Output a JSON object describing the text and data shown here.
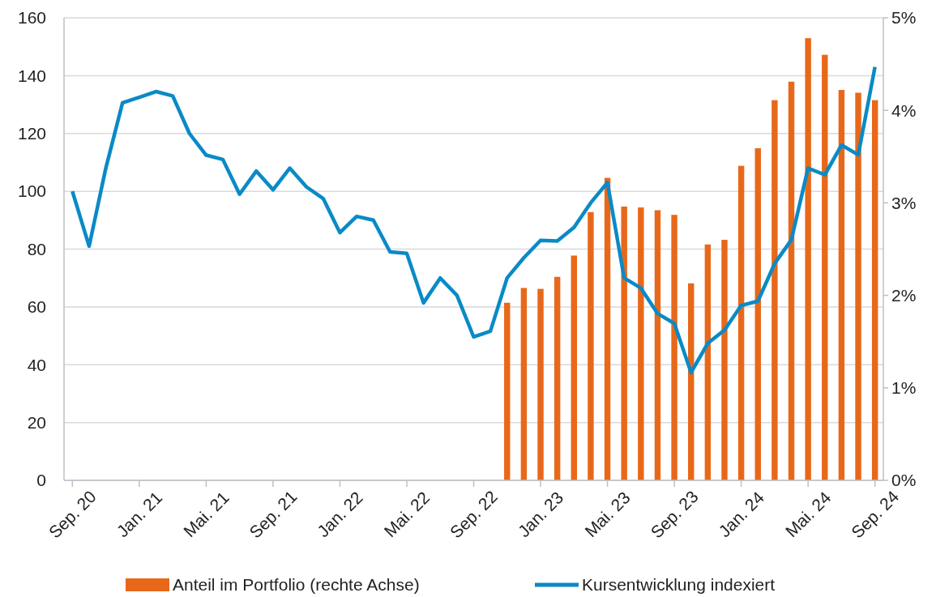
{
  "chart_data": {
    "type": "bar",
    "categories": [
      "Sep. 20",
      null,
      null,
      null,
      "Jan. 21",
      null,
      null,
      null,
      "Mai. 21",
      null,
      null,
      null,
      "Sep. 21",
      null,
      null,
      null,
      "Jan. 22",
      null,
      null,
      null,
      "Mai. 22",
      null,
      null,
      null,
      "Sep. 22",
      null,
      null,
      null,
      "Jan. 23",
      null,
      null,
      null,
      "Mai. 23",
      null,
      null,
      null,
      "Sep. 23",
      null,
      null,
      null,
      "Jan. 24",
      null,
      null,
      null,
      "Mai. 24",
      null,
      null,
      null,
      "Sep. 24"
    ],
    "series": [
      {
        "name": "Anteil im Portfolio (rechte Achse)",
        "type": "bar",
        "axis": "y2",
        "color": "#e8681a",
        "values": [
          null,
          null,
          null,
          null,
          null,
          null,
          null,
          null,
          null,
          null,
          null,
          null,
          null,
          null,
          null,
          null,
          null,
          null,
          null,
          null,
          null,
          null,
          null,
          null,
          null,
          null,
          1.92,
          2.08,
          2.07,
          2.2,
          2.43,
          2.9,
          3.27,
          2.96,
          2.95,
          2.92,
          2.87,
          2.13,
          2.55,
          2.6,
          3.4,
          3.59,
          4.11,
          4.31,
          4.78,
          4.6,
          4.22,
          4.19,
          4.11
        ]
      },
      {
        "name": "Kursentwicklung indexiert",
        "type": "line",
        "color": "#0a8ac6",
        "values": [
          100,
          81,
          108,
          130.6,
          132.5,
          134.5,
          133,
          120,
          112.5,
          111,
          99,
          107,
          100.5,
          108,
          101.5,
          97.5,
          85.7,
          91.3,
          90,
          79,
          78.5,
          61.4,
          70,
          64,
          49.6,
          51.6,
          70,
          77,
          83,
          82.8,
          87.5,
          96,
          103,
          70,
          66.5,
          57.7,
          54.3,
          37.3,
          47.4,
          52,
          60.5,
          62,
          75,
          83.2,
          108,
          105.7,
          116,
          112.6,
          143
        ]
      }
    ],
    "ylim": [
      0,
      160
    ],
    "yticks": [
      0,
      20,
      40,
      60,
      80,
      100,
      120,
      140,
      160
    ],
    "y2lim": [
      0,
      5
    ],
    "y2ticks": [
      {
        "value": 0,
        "label": "0%"
      },
      {
        "value": 1,
        "label": "1%"
      },
      {
        "value": 2,
        "label": "2%"
      },
      {
        "value": 3,
        "label": "3%"
      },
      {
        "value": 4,
        "label": "4%"
      },
      {
        "value": 5,
        "label": "5%"
      }
    ],
    "grid": "y",
    "legend": "bottom",
    "line_style": "solid",
    "marker": "none"
  }
}
